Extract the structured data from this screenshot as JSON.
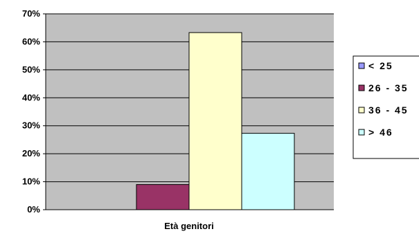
{
  "chart_data": {
    "type": "bar",
    "categories": [
      "Età genitori"
    ],
    "series": [
      {
        "name": "< 25",
        "values": [
          0
        ],
        "color": "#9999ff"
      },
      {
        "name": "26 - 35",
        "values": [
          9
        ],
        "color": "#993366"
      },
      {
        "name": "36 - 45",
        "values": [
          63.3
        ],
        "color": "#ffffcc"
      },
      {
        "name": "> 46",
        "values": [
          27.3
        ],
        "color": "#ccffff"
      }
    ],
    "title": "",
    "xlabel": "Età genitori",
    "ylabel": "",
    "ylim": [
      0,
      70
    ],
    "yticks": [
      "0%",
      "10%",
      "20%",
      "30%",
      "40%",
      "50%",
      "60%",
      "70%"
    ],
    "grid": true,
    "legend_position": "right",
    "plot_background": "#c0c0c0"
  }
}
